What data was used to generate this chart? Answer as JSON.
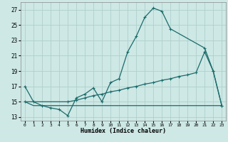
{
  "title": "",
  "xlabel": "Humidex (Indice chaleur)",
  "background_color": "#cde8e5",
  "grid_color": "#b0d0cd",
  "line_color": "#1a6b6a",
  "xlim": [
    -0.5,
    23.5
  ],
  "ylim": [
    12.5,
    28.0
  ],
  "xticks": [
    0,
    1,
    2,
    3,
    4,
    5,
    6,
    7,
    8,
    9,
    10,
    11,
    12,
    13,
    14,
    15,
    16,
    17,
    18,
    19,
    20,
    21,
    22,
    23
  ],
  "yticks": [
    13,
    15,
    17,
    19,
    21,
    23,
    25,
    27
  ],
  "line1_x": [
    0,
    1,
    2,
    3,
    4,
    5,
    6,
    7,
    8,
    9,
    10,
    11,
    12,
    13,
    14,
    15,
    16,
    17,
    21,
    22,
    23
  ],
  "line1_y": [
    17.0,
    15.0,
    14.5,
    14.2,
    14.0,
    13.2,
    15.5,
    16.0,
    16.8,
    15.0,
    17.5,
    18.0,
    21.5,
    23.5,
    26.0,
    27.2,
    26.8,
    24.5,
    22.0,
    19.0,
    14.5
  ],
  "line2_x": [
    0,
    5,
    6,
    7,
    8,
    9,
    10,
    11,
    12,
    13,
    14,
    15,
    16,
    17,
    18,
    19,
    20,
    21,
    22,
    23
  ],
  "line2_y": [
    15.0,
    15.0,
    15.2,
    15.5,
    15.8,
    16.0,
    16.3,
    16.5,
    16.8,
    17.0,
    17.3,
    17.5,
    17.8,
    18.0,
    18.3,
    18.5,
    18.8,
    21.5,
    19.0,
    14.5
  ],
  "line3_x": [
    0,
    1,
    2,
    3,
    4,
    5,
    6,
    7,
    8,
    9,
    10,
    11,
    12,
    13,
    14,
    15,
    16,
    17,
    18,
    19,
    20,
    21,
    22,
    23
  ],
  "line3_y": [
    15.0,
    14.5,
    14.5,
    14.5,
    14.5,
    14.5,
    14.5,
    14.5,
    14.5,
    14.5,
    14.5,
    14.5,
    14.5,
    14.5,
    14.5,
    14.5,
    14.5,
    14.5,
    14.5,
    14.5,
    14.5,
    14.5,
    14.5,
    14.5
  ]
}
